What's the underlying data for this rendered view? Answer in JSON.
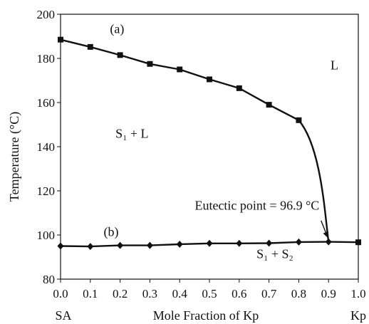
{
  "chart_data": {
    "type": "line",
    "xlabel": "Mole Fraction of Kp",
    "ylabel": "Temperature (°C)",
    "xlim": [
      0.0,
      1.0
    ],
    "ylim": [
      80,
      200
    ],
    "xticks": [
      "0.0",
      "0.1",
      "0.2",
      "0.3",
      "0.4",
      "0.5",
      "0.6",
      "0.7",
      "0.8",
      "0.9",
      "1.0"
    ],
    "yticks": [
      "80",
      "100",
      "120",
      "140",
      "160",
      "180",
      "200"
    ],
    "x_end_left": "SA",
    "x_end_right": "Kp",
    "grid": false,
    "series": [
      {
        "marker": "square",
        "x": [
          0.0,
          0.1,
          0.2,
          0.3,
          0.4,
          0.5,
          0.6,
          0.7,
          0.8,
          0.9
        ],
        "y": [
          188.5,
          185.2,
          181.5,
          177.5,
          175.0,
          170.5,
          166.5,
          159.0,
          152.0,
          96.9
        ]
      },
      {
        "marker": "diamond",
        "x": [
          0.0,
          0.1,
          0.2,
          0.3,
          0.4,
          0.5,
          0.6,
          0.7,
          0.8,
          0.9,
          1.0
        ],
        "y": [
          95.0,
          94.8,
          95.3,
          95.3,
          95.8,
          96.2,
          96.2,
          96.3,
          96.8,
          96.9,
          96.7
        ]
      }
    ],
    "annotations": [
      {
        "text": "(a)",
        "x": 0.19,
        "y": 191.5
      },
      {
        "text": "(b)",
        "x": 0.17,
        "y": 99.5
      },
      {
        "text": "L",
        "x": 0.92,
        "y": 175.0
      },
      {
        "text": "S₁ + L",
        "x": 0.24,
        "y": 144.0
      },
      {
        "text": "S₁ + S₂",
        "x": 0.72,
        "y": 89.5
      },
      {
        "text": "Eutectic point = 96.9 °C",
        "x": 0.66,
        "y": 111.5
      }
    ],
    "eutectic_point": {
      "x": 0.9,
      "y": 96.9
    }
  }
}
